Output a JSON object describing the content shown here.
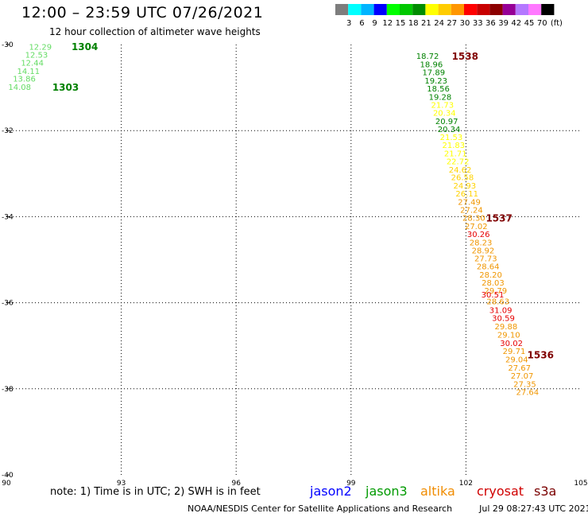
{
  "header": {
    "title": "12:00 – 23:59 UTC 07/26/2021",
    "subtitle": "12 hour collection of altimeter wave heights"
  },
  "colorbar": {
    "unit": "(ft)",
    "bins": [
      {
        "label": "",
        "color": "#7d7d7d"
      },
      {
        "label": "3",
        "color": "#00ffff"
      },
      {
        "label": "6",
        "color": "#00b4ff"
      },
      {
        "label": "9",
        "color": "#0000ff"
      },
      {
        "label": "12",
        "color": "#00ff00"
      },
      {
        "label": "15",
        "color": "#00c800"
      },
      {
        "label": "18",
        "color": "#008c00"
      },
      {
        "label": "21",
        "color": "#ffff00"
      },
      {
        "label": "24",
        "color": "#ffcc00"
      },
      {
        "label": "27",
        "color": "#ff9600"
      },
      {
        "label": "30",
        "color": "#ff0000"
      },
      {
        "label": "33",
        "color": "#c80000"
      },
      {
        "label": "36",
        "color": "#8c0000"
      },
      {
        "label": "39",
        "color": "#960096"
      },
      {
        "label": "42",
        "color": "#b478ff"
      },
      {
        "label": "45",
        "color": "#ff78ff"
      },
      {
        "label": "70",
        "color": "#000000"
      }
    ]
  },
  "map": {
    "x_ticks": [
      "90",
      "93",
      "96",
      "99",
      "102",
      "105"
    ],
    "x_values": [
      90,
      93,
      96,
      99,
      102,
      105
    ],
    "y_ticks": [
      "-30",
      "-32",
      "-34",
      "-36",
      "-38",
      "-40"
    ],
    "y_values": [
      -30,
      -32,
      -34,
      -36,
      -38,
      -40
    ],
    "lon_range": [
      90,
      105
    ],
    "lat_range": [
      -30,
      -40
    ],
    "times": [
      {
        "label": "1304",
        "lon": 91.7,
        "lat": -30.04,
        "color": "#008000"
      },
      {
        "label": "1303",
        "lon": 91.2,
        "lat": -30.98,
        "color": "#008000"
      },
      {
        "label": "1538",
        "lon": 101.63,
        "lat": -30.26,
        "color": "#800000"
      },
      {
        "label": "1537",
        "lon": 102.52,
        "lat": -34.02,
        "color": "#800000"
      },
      {
        "label": "1536",
        "lon": 103.6,
        "lat": -37.2,
        "color": "#800000"
      }
    ],
    "heights": [
      {
        "v": "12.29",
        "lon": 90.59,
        "lat": -30.05,
        "color": "#64dc64"
      },
      {
        "v": "12.53",
        "lon": 90.49,
        "lat": -30.23,
        "color": "#64dc64"
      },
      {
        "v": "12.44",
        "lon": 90.38,
        "lat": -30.42,
        "color": "#64dc64"
      },
      {
        "v": "14.11",
        "lon": 90.28,
        "lat": -30.61,
        "color": "#64dc64"
      },
      {
        "v": "13.86",
        "lon": 90.17,
        "lat": -30.79,
        "color": "#64dc64"
      },
      {
        "v": "14.08",
        "lon": 90.05,
        "lat": -30.98,
        "color": "#64dc64"
      },
      {
        "v": "18.72",
        "lon": 100.7,
        "lat": -30.26,
        "color": "#008200"
      },
      {
        "v": "18.96",
        "lon": 100.8,
        "lat": -30.45,
        "color": "#008200"
      },
      {
        "v": "17.89",
        "lon": 100.86,
        "lat": -30.64,
        "color": "#008200"
      },
      {
        "v": "19.23",
        "lon": 100.92,
        "lat": -30.83,
        "color": "#008200"
      },
      {
        "v": "18.56",
        "lon": 100.98,
        "lat": -31.02,
        "color": "#008200"
      },
      {
        "v": "19.28",
        "lon": 101.03,
        "lat": -31.21,
        "color": "#008200"
      },
      {
        "v": "21.73",
        "lon": 101.09,
        "lat": -31.4,
        "color": "#ffff00"
      },
      {
        "v": "20.34",
        "lon": 101.14,
        "lat": -31.58,
        "color": "#ffff00"
      },
      {
        "v": "20.97",
        "lon": 101.2,
        "lat": -31.77,
        "color": "#008200"
      },
      {
        "v": "20.34",
        "lon": 101.26,
        "lat": -31.96,
        "color": "#008200"
      },
      {
        "v": "21.53",
        "lon": 101.32,
        "lat": -32.14,
        "color": "#ffff00"
      },
      {
        "v": "21.83",
        "lon": 101.38,
        "lat": -32.33,
        "color": "#ffff00"
      },
      {
        "v": "21.71",
        "lon": 101.43,
        "lat": -32.52,
        "color": "#ffff00"
      },
      {
        "v": "22.72",
        "lon": 101.49,
        "lat": -32.71,
        "color": "#ffff00"
      },
      {
        "v": "24.62",
        "lon": 101.55,
        "lat": -32.9,
        "color": "#ffd200"
      },
      {
        "v": "26.58",
        "lon": 101.61,
        "lat": -33.08,
        "color": "#ffd200"
      },
      {
        "v": "24.93",
        "lon": 101.67,
        "lat": -33.27,
        "color": "#ffd200"
      },
      {
        "v": "26.11",
        "lon": 101.73,
        "lat": -33.46,
        "color": "#ffd200"
      },
      {
        "v": "27.49",
        "lon": 101.79,
        "lat": -33.65,
        "color": "#f09600"
      },
      {
        "v": "27.24",
        "lon": 101.85,
        "lat": -33.84,
        "color": "#f09600"
      },
      {
        "v": "28.30",
        "lon": 101.91,
        "lat": -34.02,
        "color": "#f09600"
      },
      {
        "v": "27.02",
        "lon": 101.97,
        "lat": -34.21,
        "color": "#f09600"
      },
      {
        "v": "30.26",
        "lon": 102.03,
        "lat": -34.4,
        "color": "#e60000"
      },
      {
        "v": "28.23",
        "lon": 102.09,
        "lat": -34.59,
        "color": "#f09600"
      },
      {
        "v": "28.92",
        "lon": 102.15,
        "lat": -34.78,
        "color": "#f09600"
      },
      {
        "v": "27.73",
        "lon": 102.22,
        "lat": -34.96,
        "color": "#f09600"
      },
      {
        "v": "28.64",
        "lon": 102.28,
        "lat": -35.15,
        "color": "#f09600"
      },
      {
        "v": "28.20",
        "lon": 102.35,
        "lat": -35.34,
        "color": "#f09600"
      },
      {
        "v": "28.03",
        "lon": 102.41,
        "lat": -35.53,
        "color": "#f09600"
      },
      {
        "v": "29.79",
        "lon": 102.48,
        "lat": -35.71,
        "color": "#f09600"
      },
      {
        "v": "30.51",
        "lon": 102.4,
        "lat": -35.8,
        "color": "#e60000"
      },
      {
        "v": "28.63",
        "lon": 102.54,
        "lat": -35.96,
        "color": "#f09600"
      },
      {
        "v": "31.09",
        "lon": 102.61,
        "lat": -36.16,
        "color": "#e60000"
      },
      {
        "v": "30.59",
        "lon": 102.68,
        "lat": -36.35,
        "color": "#e60000"
      },
      {
        "v": "29.88",
        "lon": 102.75,
        "lat": -36.54,
        "color": "#f09600"
      },
      {
        "v": "29.10",
        "lon": 102.82,
        "lat": -36.74,
        "color": "#f09600"
      },
      {
        "v": "30.02",
        "lon": 102.89,
        "lat": -36.93,
        "color": "#e60000"
      },
      {
        "v": "29.71",
        "lon": 102.96,
        "lat": -37.12,
        "color": "#f09600"
      },
      {
        "v": "29.04",
        "lon": 103.03,
        "lat": -37.31,
        "color": "#f09600"
      },
      {
        "v": "27.67",
        "lon": 103.1,
        "lat": -37.5,
        "color": "#f09600"
      },
      {
        "v": "27.07",
        "lon": 103.17,
        "lat": -37.69,
        "color": "#f09600"
      },
      {
        "v": "27.35",
        "lon": 103.24,
        "lat": -37.88,
        "color": "#f09600"
      },
      {
        "v": "27.64",
        "lon": 103.31,
        "lat": -38.07,
        "color": "#f09600"
      }
    ]
  },
  "note": "note:  1) Time is in UTC; 2) SWH is in feet",
  "satellites": {
    "jason2": "jason2",
    "jason3": "jason3",
    "altika": "altika",
    "cryosat": "cryosat",
    "s3a": "s3a"
  },
  "footer": {
    "agency": "NOAA/NESDIS Center for Satellite Applications and Research",
    "timestamp": "Jul 29 08:27:43 UTC 2021"
  }
}
